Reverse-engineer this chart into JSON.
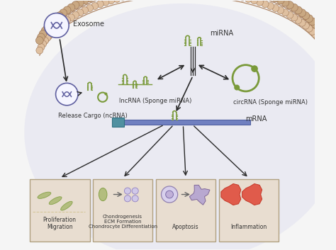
{
  "bg_color": "#f5f5f5",
  "cell_bg": "#eaeaf2",
  "membrane_color": "#c9a882",
  "membrane_inner_color": "#dfc0a0",
  "arrow_color": "#2a2a2a",
  "rna_color": "#7a9a3a",
  "box_color": "#e8ddd0",
  "box_edge": "#b0a080",
  "mrna_bar_color": "#7080c0",
  "mrna_bar_edge": "#5060a0",
  "mrna_box_color": "#5090a0",
  "mrna_box_edge": "#307080",
  "exo_face": "#f5f5ff",
  "exo_edge": "#6060a0",
  "labels": {
    "exosome": "Exosome",
    "release": "Release Cargo (ncRNA)",
    "mirna": "miRNA",
    "lncrna": "lncRNA (Sponge miRNA)",
    "circrna": "circRNA (Sponge miRNA)",
    "mrna": "mRNA",
    "box1": "Proliferation\nMigration",
    "box2": "Chondrogenesis\nECM Formation\nChondrocyte Differentiation",
    "box3": "Apoptosis",
    "box4": "Inflammation"
  },
  "figsize": [
    4.74,
    3.53
  ],
  "dpi": 100
}
